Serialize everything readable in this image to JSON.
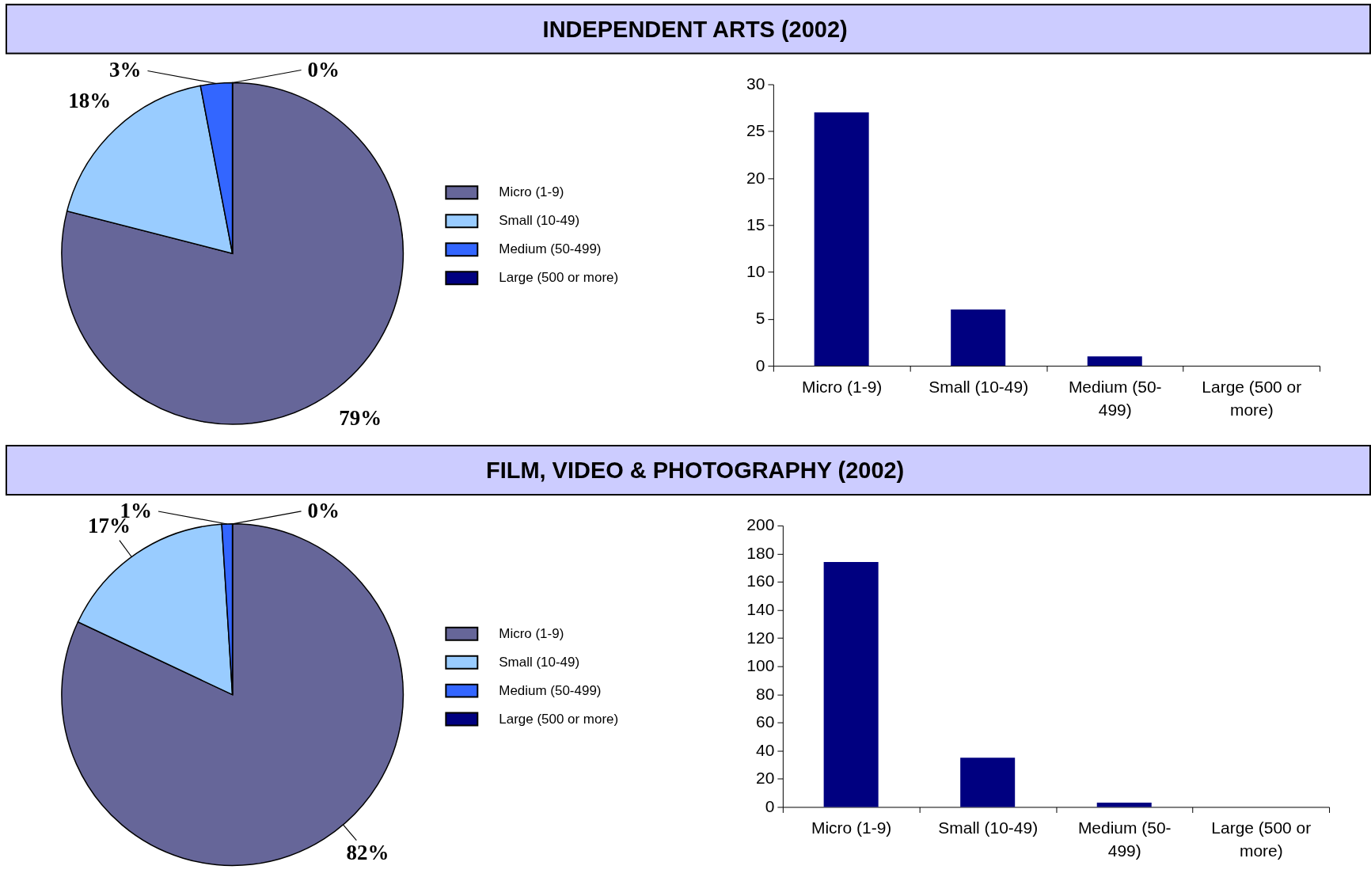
{
  "chart_data": [
    {
      "type": "pie",
      "title": "INDEPENDENT ARTS (2002)",
      "categories": [
        "Micro (1-9)",
        "Small (10-49)",
        "Medium (50-499)",
        "Large (500 or more)"
      ],
      "values": [
        79,
        18,
        3,
        0
      ],
      "colors": [
        "#666699",
        "#99ccff",
        "#3366ff",
        "#000080"
      ],
      "value_labels": [
        "79%",
        "18%",
        "3%",
        "0%"
      ],
      "legend": "right"
    },
    {
      "type": "bar",
      "categories": [
        "Micro (1-9)",
        "Small (10-49)",
        "Medium (50-499)",
        "Large (500 or more)"
      ],
      "values": [
        27,
        6,
        1,
        0
      ],
      "color": "#000080",
      "ylim": [
        0,
        30
      ],
      "yticks": [
        0,
        5,
        10,
        15,
        20,
        25,
        30
      ]
    },
    {
      "type": "pie",
      "title": "FILM, VIDEO & PHOTOGRAPHY (2002)",
      "categories": [
        "Micro (1-9)",
        "Small (10-49)",
        "Medium (50-499)",
        "Large (500 or more)"
      ],
      "values": [
        82,
        17,
        1,
        0
      ],
      "colors": [
        "#666699",
        "#99ccff",
        "#3366ff",
        "#000080"
      ],
      "value_labels": [
        "82%",
        "17%",
        "1%",
        "0%"
      ],
      "legend": "right"
    },
    {
      "type": "bar",
      "categories": [
        "Micro (1-9)",
        "Small (10-49)",
        "Medium (50-499)",
        "Large (500 or more)"
      ],
      "values": [
        174,
        35,
        3,
        0
      ],
      "color": "#000080",
      "ylim": [
        0,
        200
      ],
      "yticks": [
        0,
        20,
        40,
        60,
        80,
        100,
        120,
        140,
        160,
        180,
        200
      ]
    }
  ]
}
